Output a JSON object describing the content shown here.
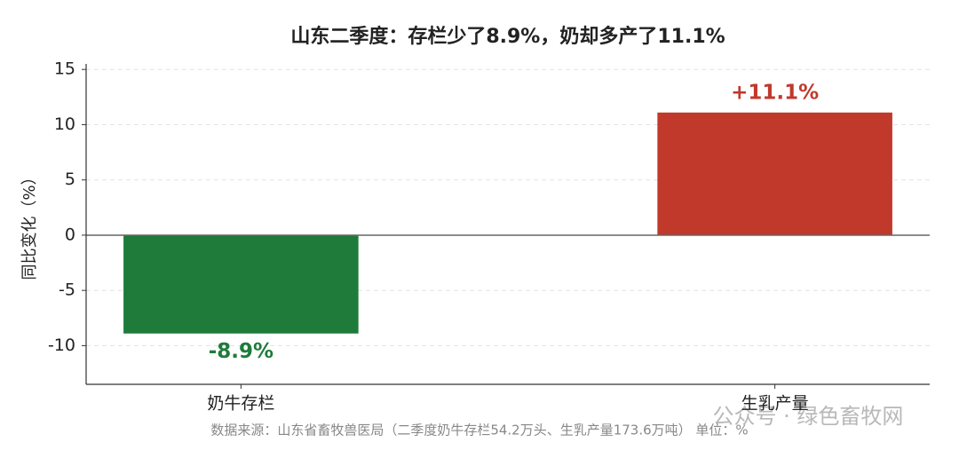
{
  "chart_data": {
    "type": "bar",
    "title": "山东二季度：存栏少了8.9%，奶却多产了11.1%",
    "ylabel": "同比变化（%）",
    "categories": [
      "奶牛存栏",
      "生乳产量"
    ],
    "values": [
      -8.9,
      11.1
    ],
    "value_labels": [
      "-8.9%",
      "+11.1%"
    ],
    "colors": [
      "#1e7b3a",
      "#c0392b"
    ],
    "ylim": [
      -13.5,
      15.5
    ],
    "yticks": [
      -10,
      -5,
      0,
      5,
      10,
      15
    ],
    "grid": true,
    "source": "数据来源：山东省畜牧兽医局（二季度奶牛存栏54.2万头、生乳产量173.6万吨）    单位：%",
    "watermark": "公众号 · 绿色畜牧网"
  }
}
